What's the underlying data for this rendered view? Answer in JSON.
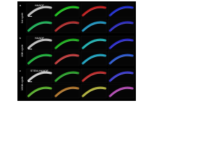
{
  "panels": [
    {
      "letter": "a",
      "cycle": "1st cycle",
      "title": "HAADF"
    },
    {
      "letter": "b",
      "cycle": "10th cycle",
      "title": "HAADF"
    },
    {
      "letter": "c",
      "cycle": "100th cycle",
      "title": "STEM-HAADF"
    }
  ]
}
